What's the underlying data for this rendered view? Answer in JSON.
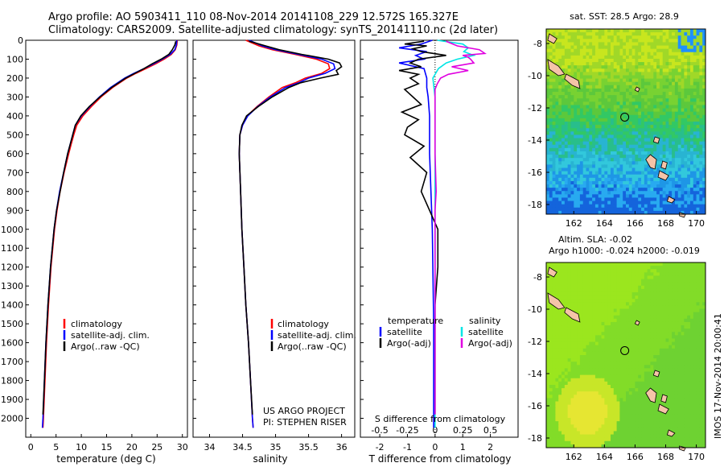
{
  "header": {
    "line1": "Argo profile: AO 5903411_110 08-Nov-2014 20141108_229 12.572S 165.327E",
    "line2": "Climatology: CARS2009. Satellite-adjusted climatology: synTS_20141110.nc (2d later)"
  },
  "colors": {
    "climatology": "#ff0000",
    "satellite_adj": "#0000ff",
    "argo": "#000000",
    "sal_satellite": "#00e5e5",
    "sal_argo": "#e000e0",
    "land": "#f5c4a8"
  },
  "chart_data": [
    {
      "id": "temperature",
      "type": "line",
      "xlabel": "temperature (deg C)",
      "ylabel": "",
      "xlim": [
        -1,
        31
      ],
      "ylim": [
        2100,
        0
      ],
      "xticks": [
        0,
        5,
        10,
        15,
        20,
        25,
        30
      ],
      "yticks": [
        0,
        100,
        200,
        300,
        400,
        500,
        600,
        700,
        800,
        900,
        1000,
        1100,
        1200,
        1300,
        1400,
        1500,
        1600,
        1700,
        1800,
        1900,
        2000
      ],
      "legend": [
        "climatology",
        "satellite-adj. clim.",
        "Argo(..raw -QC)"
      ],
      "series": [
        {
          "name": "climatology",
          "color": "#ff0000",
          "depth": [
            0,
            25,
            50,
            75,
            100,
            125,
            150,
            175,
            200,
            250,
            300,
            350,
            400,
            450,
            500,
            550,
            600,
            700,
            800,
            900,
            1000,
            1200,
            1400,
            1600,
            1800,
            2000,
            2050
          ],
          "values": [
            29.0,
            28.9,
            28.6,
            27.8,
            26.4,
            24.7,
            22.8,
            20.8,
            19.0,
            16.2,
            13.9,
            12.0,
            10.3,
            9.1,
            8.5,
            8.0,
            7.5,
            6.6,
            5.8,
            5.2,
            4.7,
            4.0,
            3.5,
            3.1,
            2.8,
            2.5,
            2.4
          ]
        },
        {
          "name": "satellite-adj. clim.",
          "color": "#0000ff",
          "depth": [
            0,
            25,
            50,
            75,
            100,
            125,
            150,
            175,
            200,
            250,
            300,
            350,
            400,
            450,
            500,
            550,
            600,
            700,
            800,
            900,
            1000,
            1200,
            1400,
            1600,
            1800,
            2000,
            2050
          ],
          "values": [
            28.9,
            28.8,
            28.5,
            27.6,
            26.0,
            24.3,
            22.4,
            20.4,
            18.6,
            15.8,
            13.6,
            11.7,
            10.0,
            8.8,
            8.3,
            7.8,
            7.3,
            6.5,
            5.7,
            5.1,
            4.6,
            3.9,
            3.4,
            3.0,
            2.7,
            2.4,
            2.3
          ]
        },
        {
          "name": "Argo(..raw -QC)",
          "color": "#000000",
          "depth": [
            5,
            25,
            50,
            75,
            100,
            125,
            150,
            175,
            200,
            250,
            300,
            350,
            400,
            450,
            500,
            550,
            600,
            700,
            800,
            900,
            1000,
            1200,
            1400,
            1600,
            1800,
            1980
          ],
          "values": [
            28.7,
            28.5,
            28.0,
            27.3,
            25.8,
            24.0,
            22.4,
            20.6,
            18.8,
            16.0,
            13.7,
            11.6,
            9.9,
            8.8,
            8.3,
            7.8,
            7.3,
            6.5,
            5.8,
            5.1,
            4.6,
            3.9,
            3.4,
            3.0,
            2.7,
            2.4
          ]
        }
      ]
    },
    {
      "id": "salinity",
      "type": "line",
      "xlabel": "salinity",
      "xlim": [
        33.75,
        36.2
      ],
      "ylim": [
        2100,
        0
      ],
      "xticks": [
        34,
        34.5,
        35,
        35.5,
        36
      ],
      "xtick_labels": [
        "34",
        "34.5",
        "35",
        "35.5",
        "36"
      ],
      "legend": [
        "climatology",
        "satellite-adj. clim.",
        "Argo(..raw -QC)"
      ],
      "annotations": [
        "US ARGO PROJECT",
        "PI: STEPHEN RISER"
      ],
      "series": [
        {
          "name": "climatology",
          "color": "#ff0000",
          "depth": [
            0,
            30,
            50,
            75,
            100,
            125,
            150,
            175,
            200,
            225,
            250,
            300,
            350,
            400,
            450,
            500,
            600,
            800,
            1000,
            1200,
            1400,
            1600,
            1800,
            2000,
            2050
          ],
          "values": [
            34.55,
            34.75,
            34.95,
            35.3,
            35.62,
            35.8,
            35.82,
            35.7,
            35.45,
            35.3,
            35.1,
            34.9,
            34.72,
            34.57,
            34.5,
            34.46,
            34.45,
            34.47,
            34.49,
            34.52,
            34.55,
            34.59,
            34.62,
            34.65,
            34.66
          ]
        },
        {
          "name": "satellite-adj. clim.",
          "color": "#0000ff",
          "depth": [
            0,
            30,
            50,
            75,
            100,
            125,
            150,
            175,
            200,
            225,
            250,
            300,
            350,
            400,
            450,
            500,
            600,
            800,
            1000,
            1200,
            1400,
            1600,
            1800,
            2000,
            2050
          ],
          "values": [
            34.6,
            34.8,
            35.0,
            35.35,
            35.7,
            35.88,
            35.9,
            35.75,
            35.5,
            35.35,
            35.15,
            34.92,
            34.73,
            34.58,
            34.5,
            34.46,
            34.45,
            34.47,
            34.49,
            34.52,
            34.55,
            34.59,
            34.62,
            34.65,
            34.66
          ]
        },
        {
          "name": "Argo(..raw -QC)",
          "color": "#000000",
          "depth": [
            5,
            30,
            50,
            75,
            100,
            120,
            140,
            160,
            180,
            200,
            225,
            250,
            300,
            350,
            400,
            450,
            500,
            600,
            800,
            1000,
            1200,
            1400,
            1600,
            1800,
            1980
          ],
          "values": [
            34.6,
            34.85,
            35.05,
            35.4,
            35.8,
            35.97,
            36.0,
            35.92,
            35.95,
            35.68,
            35.38,
            35.2,
            34.95,
            34.74,
            34.56,
            34.49,
            34.46,
            34.45,
            34.47,
            34.49,
            34.52,
            34.55,
            34.59,
            34.62,
            34.65
          ]
        }
      ]
    },
    {
      "id": "difference",
      "type": "line",
      "xlabel": "T difference from climatology",
      "top_label": "S difference from climatology",
      "xlim": [
        -2.7,
        3.0
      ],
      "ylim": [
        2100,
        0
      ],
      "xticks": [
        -2,
        -1,
        0,
        1,
        2
      ],
      "top_ticks": [
        -0.5,
        -0.25,
        0,
        0.25,
        0.5
      ],
      "top_tick_labels": [
        "-0.5",
        "-0.25",
        "0",
        "0.25",
        "0.5"
      ],
      "legend": {
        "temperature_title": "temperature",
        "salinity_title": "salinity",
        "items": [
          "satellite",
          "Argo(-adj)",
          "satellite",
          "Argo(-adj)"
        ]
      },
      "series": [
        {
          "name": "temperature satellite",
          "color": "#0000ff",
          "depth": [
            0,
            20,
            40,
            60,
            80,
            100,
            120,
            150,
            200,
            250,
            300,
            400,
            600,
            800,
            1000,
            1500,
            2000,
            2050
          ],
          "values": [
            -0.1,
            -0.5,
            -1.3,
            -0.3,
            -0.7,
            -0.4,
            -1.3,
            -0.4,
            -0.3,
            -0.3,
            -0.25,
            -0.2,
            -0.2,
            -0.15,
            -0.1,
            -0.05,
            -0.05,
            -0.05
          ]
        },
        {
          "name": "temperature Argo(-adj)",
          "color": "#000000",
          "depth": [
            5,
            20,
            30,
            45,
            60,
            80,
            100,
            120,
            140,
            160,
            180,
            200,
            230,
            260,
            300,
            340,
            380,
            420,
            460,
            500,
            560,
            620,
            700,
            800,
            900,
            1000,
            1200,
            1400,
            1600,
            1800,
            1980
          ],
          "values": [
            -0.4,
            -1.1,
            -0.3,
            -0.8,
            -0.5,
            0.4,
            -0.6,
            -0.9,
            -0.5,
            -1.3,
            -0.6,
            -0.9,
            -0.6,
            -1.1,
            -0.8,
            -0.5,
            -1.2,
            -0.6,
            -1.0,
            -1.1,
            -0.4,
            -0.9,
            -0.3,
            -0.5,
            -0.2,
            0.1,
            0.1,
            0.0,
            0.0,
            0.0,
            0.0
          ]
        },
        {
          "name": "salinity satellite",
          "color": "#00e5e5",
          "depth": [
            0,
            20,
            40,
            60,
            80,
            100,
            120,
            150,
            200,
            300,
            500,
            800,
            1000,
            1500,
            2000,
            2050
          ],
          "values": [
            0.02,
            0.25,
            0.3,
            0.26,
            0.35,
            0.2,
            0.1,
            0.03,
            -0.02,
            0.0,
            0.0,
            0.0,
            0.0,
            0.0,
            0.0,
            0.0
          ]
        },
        {
          "name": "salinity Argo(-adj)",
          "color": "#e000e0",
          "depth": [
            5,
            30,
            50,
            70,
            80,
            90,
            100,
            120,
            140,
            160,
            180,
            200,
            230,
            260,
            300,
            400,
            600,
            800,
            900,
            1000,
            1200,
            1400,
            1600,
            1800,
            1980
          ],
          "values": [
            0.1,
            0.2,
            0.4,
            0.45,
            0.25,
            0.3,
            0.32,
            0.35,
            0.15,
            0.3,
            0.12,
            0.05,
            0.02,
            0.0,
            0.0,
            0.0,
            0.0,
            0.01,
            0.0,
            0.0,
            0.0,
            0.0,
            0.0,
            0.0,
            0.0
          ]
        }
      ]
    }
  ],
  "maps": {
    "sst": {
      "title": "sat. SST: 28.5 Argo: 28.9",
      "xlim": [
        160.2,
        170.6
      ],
      "ylim": [
        -18.6,
        -7.1
      ],
      "xticks": [
        162,
        164,
        166,
        168,
        170
      ],
      "yticks": [
        -8,
        -10,
        -12,
        -14,
        -16,
        -18
      ],
      "yticks_labels": [
        "-8",
        "-10",
        "-12",
        "-14",
        "-16",
        "-18"
      ],
      "marker": {
        "lon": 165.327,
        "lat": -12.572
      }
    },
    "sla": {
      "title1": "Altim. SLA: -0.02",
      "title2": "Argo h1000: -0.024 h2000: -0.019",
      "xlim": [
        160.2,
        170.6
      ],
      "ylim": [
        -18.6,
        -7.1
      ],
      "xticks": [
        162,
        164,
        166,
        168,
        170
      ],
      "yticks": [
        -8,
        -10,
        -12,
        -14,
        -16,
        -18
      ],
      "yticks_labels": [
        "-8",
        "-10",
        "-12",
        "-14",
        "-16",
        "-18"
      ],
      "marker": {
        "lon": 165.327,
        "lat": -12.572
      }
    }
  },
  "footer": "IMOS 17-Nov-2014 20:00:41"
}
